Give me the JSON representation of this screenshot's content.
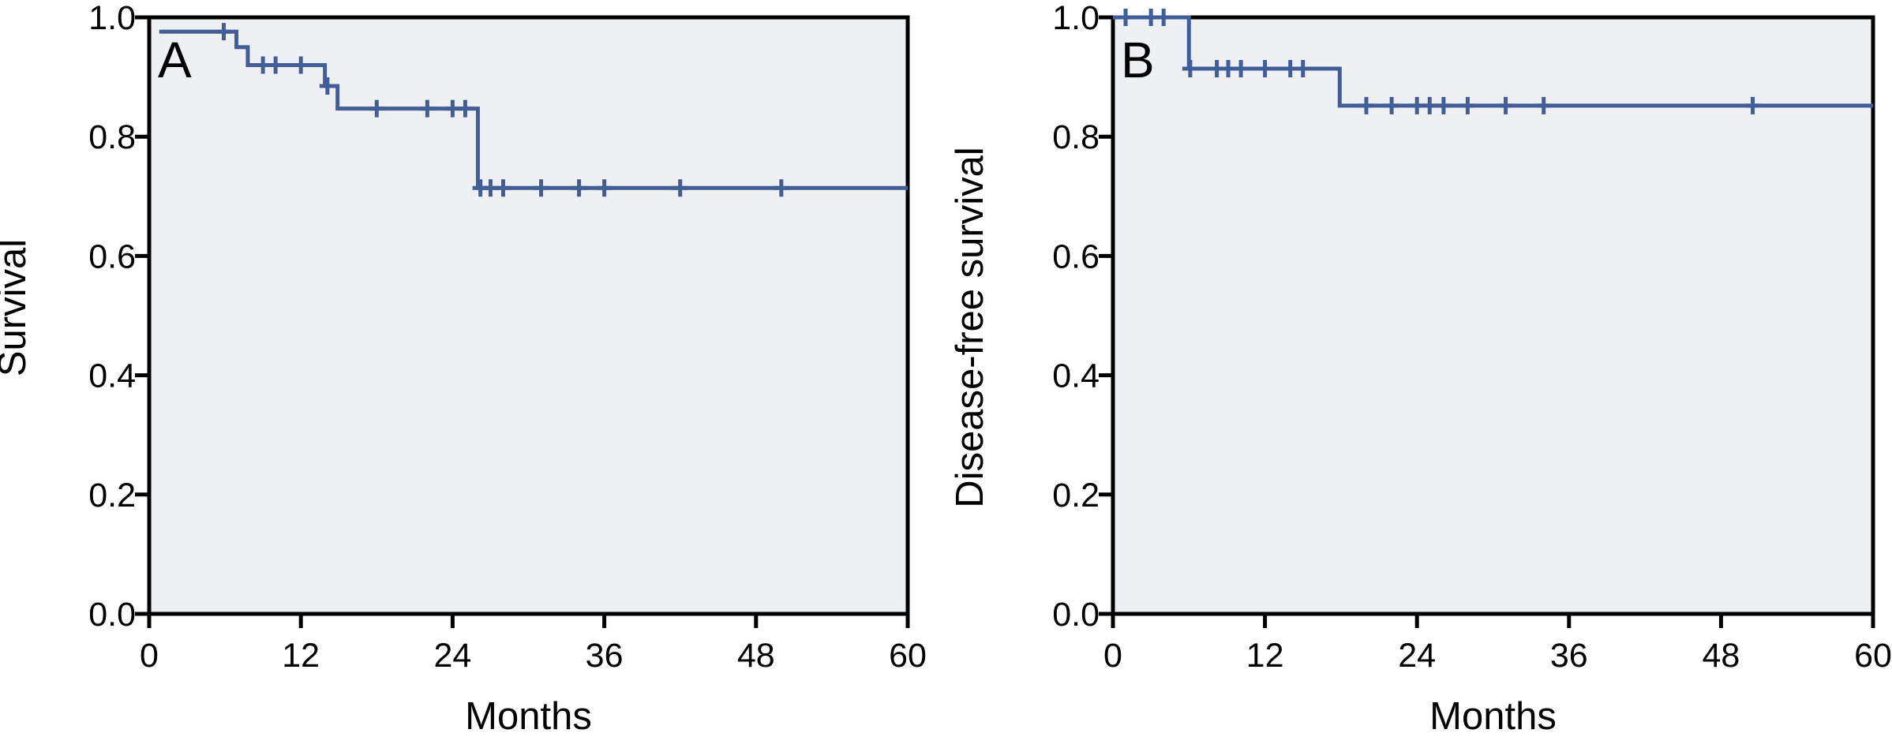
{
  "figure": {
    "background_color": "#ffffff",
    "axis_color": "#000000",
    "curve_color": "#415E99",
    "plot_background_color": "#EEF0F3",
    "panel_count": 2
  },
  "chart_data": [
    {
      "type": "line",
      "subtype": "kaplan-meier-step",
      "panel_label": "A",
      "xlabel": "Months",
      "ylabel": "Survival",
      "xlim": [
        0,
        60
      ],
      "ylim": [
        0.0,
        1.0
      ],
      "xticks": [
        0,
        12,
        24,
        36,
        48,
        60
      ],
      "xtick_labels": [
        "0",
        "12",
        "24",
        "36",
        "48",
        "60"
      ],
      "yticks": [
        0.0,
        0.2,
        0.4,
        0.6,
        0.8,
        1.0
      ],
      "ytick_labels": [
        "0.0",
        "0.2",
        "0.4",
        "0.6",
        "0.8",
        "1.0"
      ],
      "grid": false,
      "legend": "none",
      "curve_color": "#415E99",
      "plot_bg": "#EEF0F3",
      "curve_start": {
        "t": 0.8,
        "s": 0.976
      },
      "steps": [
        {
          "t": 6.9,
          "s": 0.95
        },
        {
          "t": 7.8,
          "s": 0.92
        },
        {
          "t": 13.9,
          "s": 0.885
        },
        {
          "t": 14.9,
          "s": 0.847
        },
        {
          "t": 26.0,
          "s": 0.714
        }
      ],
      "end_t": 60,
      "censor_marks": [
        [
          5.9,
          0.976
        ],
        [
          9.0,
          0.92
        ],
        [
          10.0,
          0.92
        ],
        [
          12.0,
          0.92
        ],
        [
          14.1,
          0.885
        ],
        [
          18.0,
          0.847
        ],
        [
          22.0,
          0.847
        ],
        [
          24.0,
          0.847
        ],
        [
          25.0,
          0.847
        ],
        [
          26.2,
          0.714
        ],
        [
          27.0,
          0.714
        ],
        [
          28.0,
          0.714
        ],
        [
          31.0,
          0.714
        ],
        [
          34.0,
          0.714
        ],
        [
          36.0,
          0.714
        ],
        [
          42.0,
          0.714
        ],
        [
          50.0,
          0.714
        ]
      ]
    },
    {
      "type": "line",
      "subtype": "kaplan-meier-step",
      "panel_label": "B",
      "xlabel": "Months",
      "ylabel": "Disease-free survival",
      "xlim": [
        0,
        60
      ],
      "ylim": [
        0.0,
        1.0
      ],
      "xticks": [
        0,
        12,
        24,
        36,
        48,
        60
      ],
      "xtick_labels": [
        "0",
        "12",
        "24",
        "36",
        "48",
        "60"
      ],
      "yticks": [
        0.0,
        0.2,
        0.4,
        0.6,
        0.8,
        1.0
      ],
      "ytick_labels": [
        "0.0",
        "0.2",
        "0.4",
        "0.6",
        "0.8",
        "1.0"
      ],
      "grid": false,
      "legend": "none",
      "curve_color": "#415E99",
      "plot_bg": "#EEF0F3",
      "curve_start": {
        "t": 0.0,
        "s": 1.0
      },
      "steps": [
        {
          "t": 6.0,
          "s": 0.914
        },
        {
          "t": 17.9,
          "s": 0.852
        }
      ],
      "end_t": 60,
      "censor_marks": [
        [
          1.0,
          1.0
        ],
        [
          3.0,
          1.0
        ],
        [
          4.0,
          1.0
        ],
        [
          6.1,
          0.914
        ],
        [
          8.2,
          0.914
        ],
        [
          9.1,
          0.914
        ],
        [
          10.1,
          0.914
        ],
        [
          12.0,
          0.914
        ],
        [
          14.0,
          0.914
        ],
        [
          15.0,
          0.914
        ],
        [
          20.0,
          0.852
        ],
        [
          22.0,
          0.852
        ],
        [
          24.0,
          0.852
        ],
        [
          25.0,
          0.852
        ],
        [
          26.1,
          0.852
        ],
        [
          28.0,
          0.852
        ],
        [
          31.0,
          0.852
        ],
        [
          34.0,
          0.852
        ],
        [
          50.5,
          0.852
        ]
      ]
    }
  ]
}
